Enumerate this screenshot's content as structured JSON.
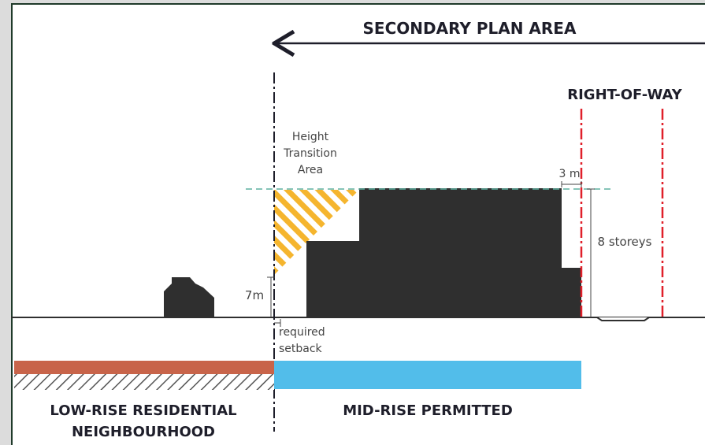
{
  "headings": {
    "secondary_plan_area": "SECONDARY PLAN AREA",
    "right_of_way": "RIGHT-OF-WAY",
    "low_rise_line1": "LOW-RISE RESIDENTIAL",
    "low_rise_line2": "NEIGHBOURHOOD",
    "mid_rise": "MID-RISE PERMITTED"
  },
  "annotations": {
    "height_line1": "Height",
    "height_line2": "Transition",
    "height_line3": "Area",
    "setback_3m": "3 m",
    "storeys": "8 storeys",
    "height_7m": "7m",
    "required_line1": "required",
    "required_line2": "setback"
  },
  "colors": {
    "building": "#2f2f2f",
    "hatch": "#f5b52e",
    "right_of_way_line": "#e0202a",
    "low_rise_band": "#c8644a",
    "mid_rise_band": "#52bdea",
    "datum": "#5fb0a0",
    "frame": "#1f3a2a"
  }
}
